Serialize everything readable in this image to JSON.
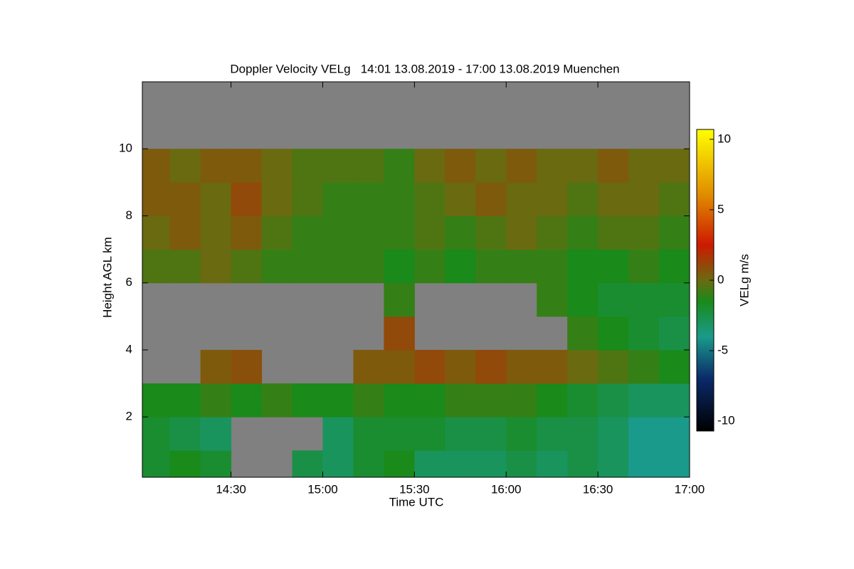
{
  "chart_data": {
    "type": "heatmap",
    "title": "Doppler Velocity VELg   14:01 13.08.2019 - 17:00 13.08.2019 Muenchen",
    "xlabel": "Time UTC",
    "ylabel": "Height AGL km",
    "colorbar_label": "VELg m/s",
    "x_bins": [
      "14:01",
      "14:10",
      "14:20",
      "14:30",
      "14:40",
      "14:50",
      "15:00",
      "15:10",
      "15:20",
      "15:30",
      "15:40",
      "15:50",
      "16:00",
      "16:10",
      "16:20",
      "16:30",
      "16:40",
      "16:50",
      "17:00"
    ],
    "xlim": [
      "14:01",
      "17:00"
    ],
    "xticks": [
      "14:30",
      "15:00",
      "15:30",
      "16:00",
      "16:30",
      "17:00"
    ],
    "y_bins": [
      0.2,
      1,
      2,
      3,
      4,
      5,
      6,
      7,
      8,
      9,
      10,
      11,
      12
    ],
    "ylim": [
      0.2,
      12
    ],
    "yticks": [
      2,
      4,
      6,
      8,
      10
    ],
    "z": [
      [
        -2,
        -1.5,
        -2,
        null,
        null,
        -2.5,
        -3,
        -2,
        -1.5,
        -3,
        -3,
        -3,
        -2.5,
        -3,
        -2.5,
        -3,
        -4,
        -4
      ],
      [
        -2,
        -2.5,
        -3,
        null,
        null,
        null,
        -3,
        -2,
        -2,
        -2,
        -2.5,
        -2.5,
        -2,
        -2.5,
        -2.5,
        -3,
        -4,
        -4
      ],
      [
        -1.5,
        -1.5,
        -1,
        -1.5,
        -1,
        -1.5,
        -1.5,
        -1,
        -1.5,
        -1.5,
        -1,
        -1,
        -1,
        -1.5,
        -2,
        -2.5,
        -3,
        -3
      ],
      [
        null,
        null,
        0.5,
        0.8,
        null,
        null,
        null,
        0.5,
        0.5,
        1,
        0.5,
        1,
        0.5,
        0.5,
        0,
        -0.5,
        -1,
        -1.5
      ],
      [
        null,
        null,
        null,
        null,
        null,
        null,
        null,
        null,
        1,
        null,
        null,
        null,
        null,
        null,
        -1,
        -1.5,
        -2,
        -2.5
      ],
      [
        null,
        null,
        null,
        null,
        null,
        null,
        null,
        null,
        -1,
        null,
        null,
        null,
        null,
        -1,
        -1.5,
        -2,
        -2,
        -2
      ],
      [
        -0.5,
        -0.5,
        0,
        -0.5,
        -1,
        -1,
        -1,
        -1,
        -1.5,
        -1,
        -1.5,
        -1,
        -1,
        -1,
        -1.5,
        -1.5,
        -1,
        -1.5
      ],
      [
        0,
        0.5,
        0,
        0.5,
        -0.5,
        -1,
        -1,
        -1,
        -1,
        -0.5,
        -1,
        -0.5,
        0,
        -0.5,
        -1,
        -0.5,
        -0.5,
        -1
      ],
      [
        0.5,
        0.5,
        0,
        1,
        0,
        -0.5,
        -1,
        -1,
        -1,
        -0.5,
        0,
        0.5,
        0,
        0,
        -0.5,
        0,
        0,
        -0.5
      ],
      [
        0.5,
        0,
        0.5,
        0.5,
        0,
        -0.5,
        -0.5,
        -0.5,
        -1,
        0,
        0.5,
        0,
        0.5,
        0,
        0,
        0.5,
        0,
        0
      ],
      [
        null,
        null,
        null,
        null,
        null,
        null,
        null,
        null,
        null,
        null,
        null,
        null,
        null,
        null,
        null,
        null,
        null,
        null
      ],
      [
        null,
        null,
        null,
        null,
        null,
        null,
        null,
        null,
        null,
        null,
        null,
        null,
        null,
        null,
        null,
        null,
        null,
        null
      ]
    ],
    "zlim": [
      -10.7,
      10.7
    ],
    "zticks": [
      -10,
      -5,
      0,
      5,
      10
    ],
    "missing_color": "#808080",
    "colorscale": [
      [
        -10.7,
        "#000000"
      ],
      [
        -7,
        "#0a2a6a"
      ],
      [
        -4,
        "#1a9a8a"
      ],
      [
        -1.5,
        "#1a8a1a"
      ],
      [
        0,
        "#6a6a10"
      ],
      [
        2.5,
        "#cc1a00"
      ],
      [
        6,
        "#e08a00"
      ],
      [
        10.7,
        "#ffff00"
      ]
    ]
  }
}
